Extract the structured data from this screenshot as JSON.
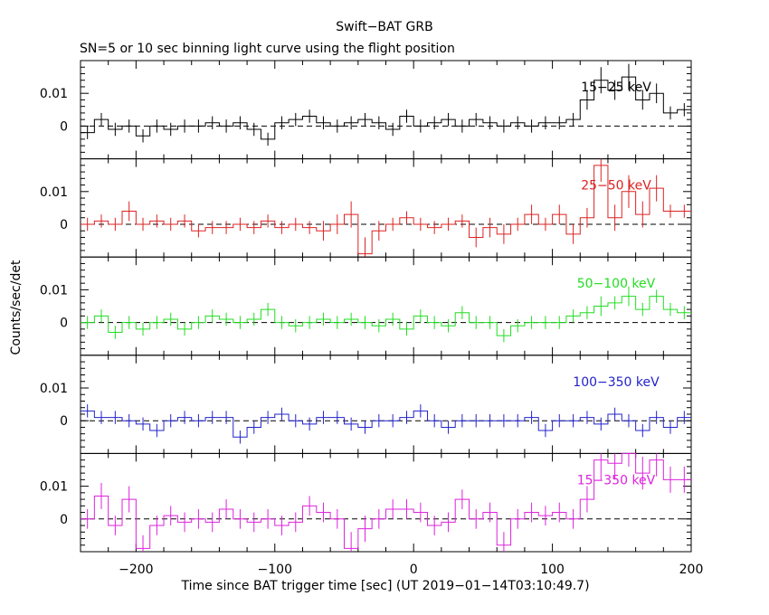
{
  "title": "Swift−BAT GRB",
  "subtitle": "SN=5 or 10 sec binning light curve using the flight position",
  "xlabel": "Time since BAT trigger time [sec] (UT 2019−01−14T03:10:49.7)",
  "ylabel": "Counts/sec/det",
  "chart_data": {
    "type": "line",
    "subtype": "step light curve with error bars",
    "x": [
      -235,
      -225,
      -215,
      -205,
      -195,
      -185,
      -175,
      -165,
      -155,
      -145,
      -135,
      -125,
      -115,
      -105,
      -95,
      -85,
      -75,
      -65,
      -55,
      -45,
      -35,
      -25,
      -15,
      -5,
      5,
      15,
      25,
      35,
      45,
      55,
      65,
      75,
      85,
      95,
      105,
      115,
      125,
      135,
      145,
      155,
      165,
      175,
      185,
      195
    ],
    "bin_width": 10,
    "xlim": [
      -240,
      200
    ],
    "x_ticks": [
      -200,
      -100,
      0,
      100,
      200
    ],
    "x_tick_labels": [
      "−200",
      "−100",
      "0",
      "100",
      "200"
    ],
    "ylim": [
      -0.01,
      0.02
    ],
    "y_ticks": [
      0,
      0.01
    ],
    "y_tick_labels": [
      "0",
      "0.01"
    ],
    "zero_line": "dashed",
    "series": [
      {
        "name": "15−25 keV",
        "color": "#000000",
        "values": [
          -0.002,
          0.002,
          -0.001,
          0.0,
          -0.003,
          0.0,
          -0.001,
          0.0,
          0.0,
          0.001,
          0.0,
          0.001,
          -0.001,
          -0.004,
          0.001,
          0.002,
          0.003,
          0.001,
          0.0,
          0.001,
          0.002,
          0.001,
          -0.001,
          0.003,
          0.0,
          0.001,
          0.002,
          0.0,
          0.002,
          0.001,
          0.0,
          0.001,
          0.0,
          0.001,
          0.001,
          0.002,
          0.008,
          0.014,
          0.011,
          0.015,
          0.008,
          0.01,
          0.004,
          0.005
        ],
        "errors": [
          0.002,
          0.002,
          0.002,
          0.002,
          0.002,
          0.002,
          0.002,
          0.002,
          0.002,
          0.002,
          0.002,
          0.002,
          0.002,
          0.002,
          0.002,
          0.002,
          0.002,
          0.002,
          0.002,
          0.002,
          0.002,
          0.002,
          0.002,
          0.002,
          0.002,
          0.002,
          0.002,
          0.002,
          0.002,
          0.002,
          0.002,
          0.002,
          0.002,
          0.002,
          0.002,
          0.002,
          0.003,
          0.004,
          0.003,
          0.004,
          0.003,
          0.003,
          0.002,
          0.002
        ]
      },
      {
        "name": "25−50 keV",
        "color": "#dd2222",
        "values": [
          0.0,
          0.001,
          0.0,
          0.004,
          0.0,
          0.001,
          0.0,
          0.001,
          -0.002,
          -0.001,
          -0.001,
          0.0,
          -0.001,
          0.001,
          -0.001,
          0.0,
          -0.001,
          -0.002,
          0.0,
          0.003,
          -0.009,
          -0.002,
          0.0,
          0.002,
          0.0,
          -0.001,
          0.0,
          0.001,
          -0.004,
          -0.001,
          -0.003,
          0.0,
          0.003,
          0.0,
          0.003,
          -0.003,
          0.002,
          0.018,
          0.002,
          0.01,
          0.003,
          0.011,
          0.004,
          0.004
        ],
        "errors": [
          0.002,
          0.002,
          0.002,
          0.003,
          0.002,
          0.002,
          0.002,
          0.002,
          0.002,
          0.002,
          0.002,
          0.002,
          0.002,
          0.002,
          0.002,
          0.002,
          0.002,
          0.003,
          0.003,
          0.004,
          0.005,
          0.003,
          0.002,
          0.002,
          0.002,
          0.002,
          0.002,
          0.002,
          0.003,
          0.003,
          0.003,
          0.002,
          0.003,
          0.002,
          0.003,
          0.003,
          0.003,
          0.005,
          0.004,
          0.005,
          0.004,
          0.004,
          0.002,
          0.002
        ]
      },
      {
        "name": "50−100 keV",
        "color": "#22dd22",
        "values": [
          0.0,
          0.002,
          -0.003,
          0.0,
          -0.002,
          0.0,
          0.001,
          -0.002,
          0.0,
          0.002,
          0.001,
          0.0,
          0.001,
          0.004,
          0.0,
          -0.001,
          0.0,
          0.001,
          0.0,
          0.001,
          0.0,
          -0.001,
          0.001,
          -0.002,
          0.002,
          0.0,
          -0.001,
          0.003,
          0.0,
          0.0,
          -0.004,
          -0.001,
          0.0,
          0.0,
          0.0,
          0.002,
          0.003,
          0.005,
          0.006,
          0.008,
          0.004,
          0.008,
          0.004,
          0.003
        ],
        "errors": [
          0.002,
          0.002,
          0.002,
          0.002,
          0.002,
          0.002,
          0.002,
          0.002,
          0.002,
          0.002,
          0.002,
          0.002,
          0.002,
          0.002,
          0.002,
          0.002,
          0.002,
          0.002,
          0.002,
          0.002,
          0.002,
          0.002,
          0.002,
          0.002,
          0.002,
          0.002,
          0.002,
          0.002,
          0.002,
          0.002,
          0.002,
          0.002,
          0.002,
          0.002,
          0.002,
          0.002,
          0.002,
          0.003,
          0.002,
          0.003,
          0.002,
          0.002,
          0.002,
          0.002
        ]
      },
      {
        "name": "100−350 keV",
        "color": "#2222cc",
        "values": [
          0.003,
          0.001,
          0.001,
          0.0,
          -0.001,
          -0.003,
          0.0,
          0.001,
          0.0,
          0.001,
          0.001,
          -0.005,
          -0.002,
          0.001,
          0.002,
          0.0,
          -0.001,
          0.001,
          0.001,
          -0.001,
          -0.002,
          0.0,
          0.0,
          0.001,
          0.003,
          0.0,
          -0.002,
          0.0,
          0.0,
          0.0,
          0.0,
          0.0,
          0.001,
          -0.003,
          0.0,
          0.0,
          0.001,
          -0.001,
          0.002,
          0.0,
          -0.003,
          0.001,
          -0.002,
          0.001
        ],
        "errors": [
          0.002,
          0.002,
          0.002,
          0.002,
          0.002,
          0.002,
          0.002,
          0.002,
          0.002,
          0.002,
          0.002,
          0.002,
          0.002,
          0.002,
          0.002,
          0.002,
          0.002,
          0.002,
          0.002,
          0.002,
          0.002,
          0.002,
          0.002,
          0.002,
          0.002,
          0.002,
          0.002,
          0.002,
          0.002,
          0.002,
          0.002,
          0.002,
          0.002,
          0.002,
          0.002,
          0.002,
          0.002,
          0.002,
          0.002,
          0.002,
          0.002,
          0.002,
          0.002,
          0.002
        ]
      },
      {
        "name": "15−350 keV",
        "color": "#dd22dd",
        "values": [
          0.0,
          0.007,
          -0.002,
          0.006,
          -0.009,
          -0.002,
          0.001,
          -0.001,
          0.0,
          -0.001,
          0.003,
          0.0,
          -0.001,
          0.0,
          -0.002,
          -0.001,
          0.004,
          0.002,
          0.0,
          -0.009,
          -0.003,
          0.0,
          0.003,
          0.003,
          0.002,
          -0.002,
          -0.001,
          0.006,
          0.0,
          0.002,
          -0.008,
          0.0,
          0.002,
          0.001,
          0.002,
          0.0,
          0.006,
          0.018,
          0.017,
          0.022,
          0.014,
          0.018,
          0.012,
          0.012
        ],
        "errors": [
          0.003,
          0.004,
          0.003,
          0.004,
          0.004,
          0.003,
          0.003,
          0.003,
          0.003,
          0.003,
          0.003,
          0.003,
          0.003,
          0.003,
          0.003,
          0.003,
          0.003,
          0.003,
          0.003,
          0.005,
          0.004,
          0.003,
          0.003,
          0.003,
          0.003,
          0.003,
          0.003,
          0.003,
          0.003,
          0.003,
          0.004,
          0.003,
          0.003,
          0.003,
          0.003,
          0.003,
          0.004,
          0.006,
          0.005,
          0.006,
          0.005,
          0.005,
          0.004,
          0.004
        ]
      }
    ]
  }
}
